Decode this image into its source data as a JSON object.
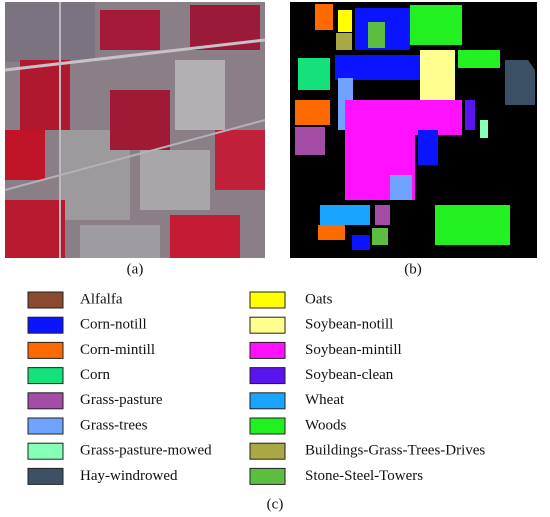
{
  "panels": {
    "a": {
      "caption": "(a)"
    },
    "b": {
      "caption": "(b)"
    },
    "c": {
      "caption": "(c)"
    }
  },
  "legend": {
    "items": [
      {
        "label": "Alfalfa",
        "color": "#8b4a30"
      },
      {
        "label": "Corn-notill",
        "color": "#0a14ff"
      },
      {
        "label": "Corn-mintill",
        "color": "#ff6a00"
      },
      {
        "label": "Corn",
        "color": "#14e07c"
      },
      {
        "label": "Grass-pasture",
        "color": "#a44ca6"
      },
      {
        "label": "Grass-trees",
        "color": "#70a2ff"
      },
      {
        "label": "Grass-pasture-mowed",
        "color": "#86ffb4"
      },
      {
        "label": "Hay-windrowed",
        "color": "#3c5066"
      },
      {
        "label": "Oats",
        "color": "#ffff00"
      },
      {
        "label": "Soybean-notill",
        "color": "#ffff90"
      },
      {
        "label": "Soybean-mintill",
        "color": "#ff10ff"
      },
      {
        "label": "Soybean-clean",
        "color": "#5a14f0"
      },
      {
        "label": "Wheat",
        "color": "#18a4ff"
      },
      {
        "label": "Woods",
        "color": "#22f020"
      },
      {
        "label": "Buildings-Grass-Trees-Drives",
        "color": "#a8a844"
      },
      {
        "label": "Stone-Steel-Towers",
        "color": "#5cbe40"
      }
    ]
  }
}
